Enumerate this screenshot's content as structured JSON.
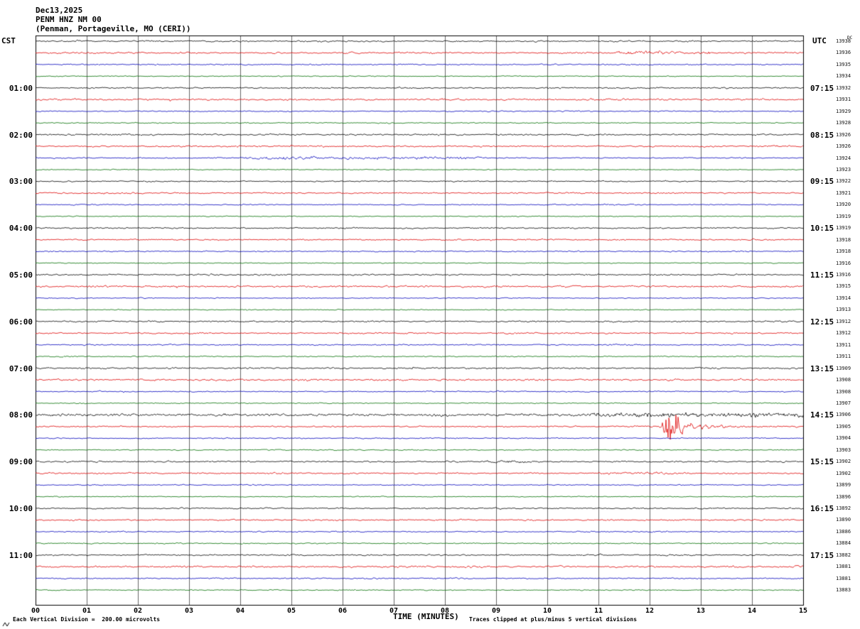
{
  "title": {
    "date": "Dec13,2025",
    "station": "PENM HNZ NM 00",
    "location": "(Penman, Portageville, MO (CERI))"
  },
  "axes": {
    "left_header": "CST",
    "right_header": "UTC",
    "x_label": "TIME (MINUTES)",
    "x_ticks": [
      "00",
      "01",
      "02",
      "03",
      "04",
      "05",
      "06",
      "07",
      "08",
      "09",
      "10",
      "11",
      "12",
      "13",
      "14",
      "15"
    ]
  },
  "footer": {
    "scale_text": "Each Vertical Division =  200.00 microvolts",
    "clip_text": "Traces clipped at plus/minus 5 vertical divisions"
  },
  "chart_data": {
    "type": "line",
    "subtype": "helicorder-seismogram",
    "minutes_per_trace": 15,
    "trace_count": 48,
    "x_range_minutes": [
      0,
      15
    ],
    "trace_colors": [
      "black",
      "red",
      "blue",
      "green"
    ],
    "colors": {
      "black": "#000000",
      "red": "#dd0000",
      "blue": "#0000bb",
      "green": "#006e00"
    },
    "base_amps": {
      "black": 1.0,
      "red": 1.15,
      "blue": 0.85,
      "green": 0.7
    },
    "hour_labels": {
      "cst": [
        "01:00",
        "02:00",
        "03:00",
        "04:00",
        "05:00",
        "06:00",
        "07:00",
        "08:00",
        "09:00",
        "10:00",
        "11:00"
      ],
      "utc": [
        "07:15",
        "08:15",
        "09:15",
        "10:15",
        "11:15",
        "12:15",
        "13:15",
        "14:15",
        "15:15",
        "16:15",
        "17:15"
      ]
    },
    "counters_header": "DC",
    "right_counters": [
      "13938",
      "13936",
      "13935",
      "13934",
      "13932",
      "13931",
      "13929",
      "13928",
      "13926",
      "13926",
      "13924",
      "13923",
      "13922",
      "13921",
      "13920",
      "13919",
      "13919",
      "13918",
      "13918",
      "13916",
      "13916",
      "13915",
      "13914",
      "13913",
      "13912",
      "13912",
      "13911",
      "13911",
      "13909",
      "13908",
      "13908",
      "13907",
      "13906",
      "13905",
      "13904",
      "13903",
      "13902",
      "13902",
      "13899",
      "13896",
      "13892",
      "13890",
      "13886",
      "13884",
      "13882",
      "13881",
      "13881",
      "13883"
    ],
    "events": [
      {
        "row": 33,
        "type": "quake",
        "center_min": 12.42,
        "peak_amp": 26,
        "coda_amp": 7,
        "coda_decay": 0.6,
        "extra_peaks": [
          {
            "center_min": 12.3,
            "amp": 7
          },
          {
            "center_min": 12.58,
            "amp": 9
          }
        ],
        "description": "impulsive local event on 08:15 CST / 14:15 UTC red trace near minute 12.4"
      },
      {
        "row": 32,
        "type": "noise",
        "start_min": 0,
        "end_min": 15,
        "amp": 0.7
      },
      {
        "row": 32,
        "type": "noise",
        "start_min": 10.8,
        "end_min": 15,
        "amp": 1.5
      },
      {
        "row": 1,
        "type": "noise",
        "start_min": 11.3,
        "end_min": 13.2,
        "amp": 1.4
      },
      {
        "row": 10,
        "type": "noise",
        "start_min": 4.0,
        "end_min": 8.8,
        "amp": 1.1
      },
      {
        "row": 36,
        "type": "noise",
        "start_min": 8.8,
        "end_min": 9.6,
        "amp": 1.2
      },
      {
        "row": 37,
        "type": "noise",
        "start_min": 11.0,
        "end_min": 12.8,
        "amp": 0.8
      }
    ]
  }
}
